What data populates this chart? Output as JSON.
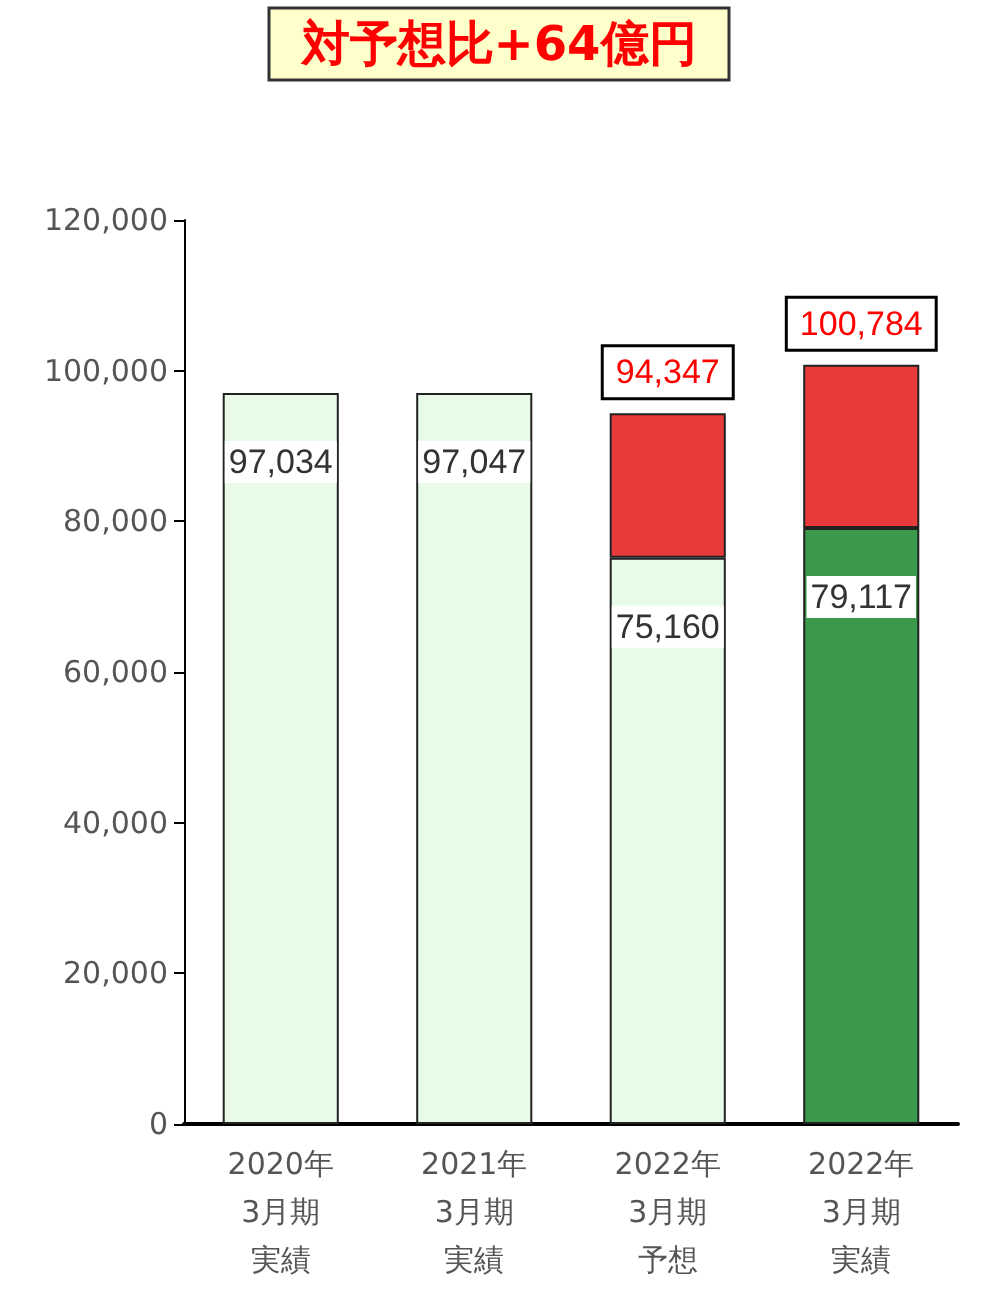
{
  "chart_data": {
    "type": "bar",
    "title": "対予想比+64億円",
    "categories": [
      "2020年3月期実績",
      "2021年3月期実績",
      "2022年3月期予想",
      "2022年3月期実績"
    ],
    "stacked": true,
    "series": [
      {
        "colors": [
          "#e8fbe8",
          "#e8fbe8",
          "#e8fbe8",
          "#3a9a4a"
        ],
        "values": [
          97034,
          97047,
          75160,
          79117
        ],
        "value_labels": [
          "97,034",
          "97,047",
          "75,160",
          "79,117"
        ]
      },
      {
        "color": "#e83a3a",
        "values": [
          null,
          null,
          19187,
          21667
        ]
      }
    ],
    "totals": [
      null,
      null,
      "94,347",
      "100,784"
    ],
    "ylim": [
      0,
      120000
    ],
    "yticks": [
      {
        "value": 0,
        "label": "0"
      },
      {
        "value": 20000,
        "label": "20,000"
      },
      {
        "value": 40000,
        "label": "40,000"
      },
      {
        "value": 60000,
        "label": "60,000"
      },
      {
        "value": 80000,
        "label": "80,000"
      },
      {
        "value": 100000,
        "label": "100,000"
      },
      {
        "value": 120000,
        "label": "120,000"
      }
    ],
    "grid": false
  }
}
